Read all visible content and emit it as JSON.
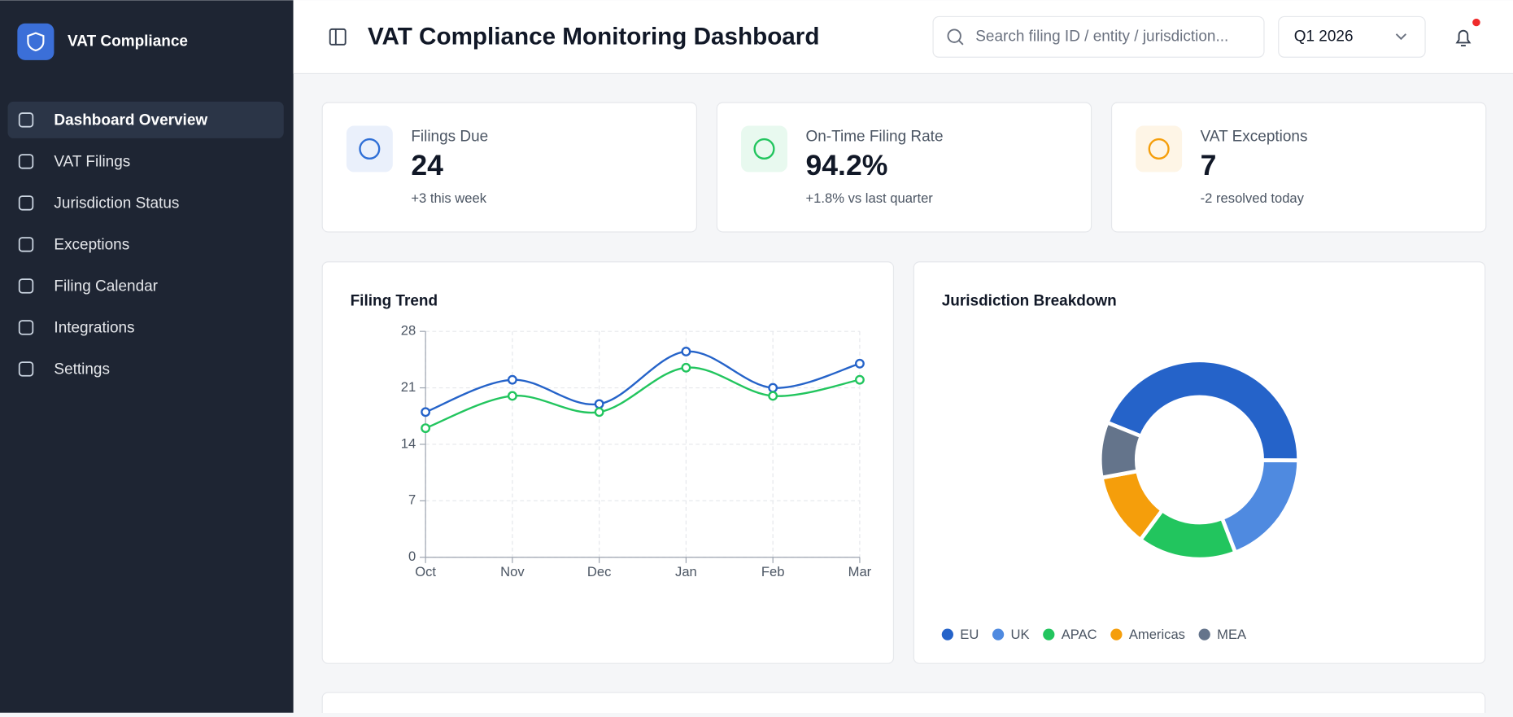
{
  "sidebar": {
    "brand": "VAT Compliance",
    "nav": [
      "Dashboard Overview",
      "VAT Filings",
      "Jurisdiction Status",
      "Exceptions",
      "Filing Calendar",
      "Integrations",
      "Settings"
    ],
    "active": 0
  },
  "header": {
    "title": "VAT Compliance Monitoring Dashboard",
    "search_placeholder": "Search filing ID / entity / jurisdiction...",
    "period": "Q1 2026"
  },
  "kpis": [
    {
      "label": "Filings Due",
      "value": "24",
      "note": "+3 this week",
      "color": "#2f6fd6"
    },
    {
      "label": "On-Time Filing Rate",
      "value": "94.2%",
      "note": "+1.8% vs last quarter",
      "color": "#22c55e"
    },
    {
      "label": "VAT Exceptions",
      "value": "7",
      "note": "-2 resolved today",
      "color": "#f59e0b"
    }
  ],
  "chart_data": [
    {
      "type": "line",
      "title": "Filing Trend",
      "categories": [
        "Oct",
        "Nov",
        "Dec",
        "Jan",
        "Feb",
        "Mar"
      ],
      "series": [
        {
          "color": "#2563c9",
          "values": [
            18,
            22,
            19,
            25.5,
            21,
            24
          ]
        },
        {
          "color": "#22c55e",
          "values": [
            16,
            20,
            18,
            23.5,
            20,
            22
          ]
        }
      ],
      "ylim": [
        0,
        28
      ],
      "yticks": [
        0,
        7,
        14,
        21,
        28
      ],
      "grid": true
    },
    {
      "type": "pie",
      "title": "Jurisdiction Breakdown",
      "categories": [
        "EU",
        "UK",
        "APAC",
        "Americas",
        "MEA"
      ],
      "values": [
        44,
        19,
        16,
        12,
        9
      ],
      "colors": [
        "#2563c9",
        "#4f8ae0",
        "#22c55e",
        "#f59e0b",
        "#64748b"
      ],
      "donut": true,
      "legend": "bottom"
    }
  ]
}
